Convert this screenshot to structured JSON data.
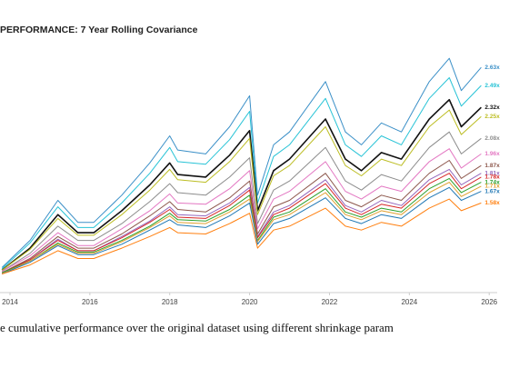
{
  "chart_data": {
    "type": "line",
    "title": "PERFORMANCE: 7 Year Rolling Covariance",
    "caption": "e cumulative performance over the original dataset using different shrinkage param",
    "x": [
      2013.8,
      2014.5,
      2015.2,
      2015.7,
      2016.1,
      2016.8,
      2017.5,
      2018.0,
      2018.2,
      2018.9,
      2019.5,
      2020.0,
      2020.2,
      2020.6,
      2021.0,
      2021.9,
      2022.4,
      2022.8,
      2023.3,
      2023.8,
      2024.5,
      2025.0,
      2025.3,
      2025.8
    ],
    "xlim": [
      2013.75,
      2026.2
    ],
    "xticks": [
      2014,
      2016,
      2018,
      2020,
      2022,
      2024,
      2026
    ],
    "ylim": [
      0.9,
      2.8
    ],
    "series": [
      {
        "color": "#3a8fc7",
        "values": [
          1.08,
          1.29,
          1.6,
          1.43,
          1.43,
          1.64,
          1.89,
          2.1,
          1.99,
          1.96,
          2.17,
          2.41,
          1.64,
          2.03,
          2.13,
          2.52,
          2.13,
          2.03,
          2.2,
          2.13,
          2.52,
          2.7,
          2.45,
          2.63
        ],
        "value_labels": [
          null,
          null,
          null,
          null,
          null,
          null,
          null,
          null,
          null,
          null,
          null,
          null,
          null,
          null,
          null,
          null,
          null,
          null,
          null,
          null,
          null,
          null,
          null,
          "2.63x"
        ]
      },
      {
        "color": "#27c3d6",
        "values": [
          1.07,
          1.27,
          1.55,
          1.39,
          1.39,
          1.58,
          1.81,
          2.01,
          1.9,
          1.88,
          2.07,
          2.29,
          1.58,
          1.94,
          2.03,
          2.39,
          2.03,
          1.94,
          2.1,
          2.03,
          2.39,
          2.55,
          2.33,
          2.49
        ],
        "value_labels": [
          null,
          null,
          null,
          null,
          null,
          null,
          null,
          null,
          null,
          null,
          null,
          null,
          null,
          null,
          null,
          null,
          null,
          null,
          null,
          null,
          null,
          null,
          null,
          "2.49x"
        ]
      },
      {
        "color": "#111111",
        "values": [
          1.06,
          1.23,
          1.49,
          1.35,
          1.35,
          1.52,
          1.72,
          1.89,
          1.8,
          1.78,
          1.95,
          2.14,
          1.52,
          1.83,
          1.92,
          2.23,
          1.92,
          1.83,
          1.97,
          1.92,
          2.23,
          2.38,
          2.17,
          2.32
        ],
        "value_labels": [
          null,
          null,
          null,
          null,
          null,
          null,
          null,
          null,
          null,
          null,
          null,
          null,
          null,
          null,
          null,
          null,
          null,
          null,
          null,
          null,
          null,
          null,
          null,
          "2.32x"
        ]
      },
      {
        "color": "#bcbd22",
        "values": [
          1.06,
          1.22,
          1.46,
          1.33,
          1.33,
          1.49,
          1.68,
          1.84,
          1.76,
          1.74,
          1.9,
          2.08,
          1.49,
          1.79,
          1.87,
          2.17,
          1.87,
          1.79,
          1.92,
          1.87,
          2.17,
          2.3,
          2.11,
          2.25
        ],
        "value_labels": [
          null,
          null,
          null,
          null,
          null,
          null,
          null,
          null,
          null,
          null,
          null,
          null,
          null,
          null,
          null,
          null,
          null,
          null,
          null,
          null,
          null,
          null,
          null,
          "2.25x"
        ]
      },
      {
        "color": "#8c8c8c",
        "values": [
          1.05,
          1.19,
          1.4,
          1.29,
          1.29,
          1.42,
          1.59,
          1.73,
          1.66,
          1.64,
          1.78,
          1.93,
          1.42,
          1.68,
          1.75,
          2.01,
          1.75,
          1.68,
          1.8,
          1.75,
          2.01,
          2.13,
          1.96,
          2.08
        ],
        "value_labels": [
          null,
          null,
          null,
          null,
          null,
          null,
          null,
          null,
          null,
          null,
          null,
          null,
          null,
          null,
          null,
          null,
          null,
          null,
          null,
          null,
          null,
          null,
          null,
          "2.08x"
        ]
      },
      {
        "color": "#e377c2",
        "values": [
          1.05,
          1.17,
          1.35,
          1.25,
          1.25,
          1.38,
          1.52,
          1.65,
          1.58,
          1.57,
          1.69,
          1.83,
          1.38,
          1.61,
          1.67,
          1.9,
          1.67,
          1.61,
          1.71,
          1.67,
          1.9,
          2.0,
          1.85,
          1.96
        ],
        "value_labels": [
          null,
          null,
          null,
          null,
          null,
          null,
          null,
          null,
          null,
          null,
          null,
          null,
          null,
          null,
          null,
          null,
          null,
          null,
          null,
          null,
          null,
          null,
          null,
          "1.96x"
        ]
      },
      {
        "color": "#8c564b",
        "values": [
          1.04,
          1.15,
          1.32,
          1.23,
          1.23,
          1.34,
          1.48,
          1.59,
          1.53,
          1.51,
          1.62,
          1.75,
          1.34,
          1.55,
          1.6,
          1.81,
          1.6,
          1.55,
          1.64,
          1.6,
          1.81,
          1.91,
          1.77,
          1.87
        ],
        "value_labels": [
          null,
          null,
          null,
          null,
          null,
          null,
          null,
          null,
          null,
          null,
          null,
          null,
          null,
          null,
          null,
          null,
          null,
          null,
          null,
          null,
          null,
          null,
          null,
          "1.87x"
        ]
      },
      {
        "color": "#9467bd",
        "values": [
          1.04,
          1.14,
          1.3,
          1.21,
          1.21,
          1.32,
          1.44,
          1.55,
          1.49,
          1.48,
          1.58,
          1.7,
          1.32,
          1.51,
          1.56,
          1.76,
          1.56,
          1.51,
          1.6,
          1.56,
          1.76,
          1.84,
          1.72,
          1.81
        ],
        "value_labels": [
          null,
          null,
          null,
          null,
          null,
          null,
          null,
          null,
          null,
          null,
          null,
          null,
          null,
          null,
          null,
          null,
          null,
          null,
          null,
          null,
          null,
          null,
          null,
          "1.81x"
        ]
      },
      {
        "color": "#d62728",
        "values": [
          1.04,
          1.14,
          1.29,
          1.21,
          1.21,
          1.31,
          1.43,
          1.53,
          1.47,
          1.46,
          1.56,
          1.68,
          1.31,
          1.49,
          1.54,
          1.73,
          1.54,
          1.49,
          1.57,
          1.54,
          1.73,
          1.81,
          1.69,
          1.78
        ],
        "value_labels": [
          null,
          null,
          null,
          null,
          null,
          null,
          null,
          null,
          null,
          null,
          null,
          null,
          null,
          null,
          null,
          null,
          null,
          null,
          null,
          null,
          null,
          null,
          null,
          "1.78x"
        ]
      },
      {
        "color": "#2ca02c",
        "values": [
          1.04,
          1.13,
          1.27,
          1.2,
          1.2,
          1.29,
          1.4,
          1.5,
          1.45,
          1.44,
          1.53,
          1.64,
          1.29,
          1.47,
          1.51,
          1.69,
          1.51,
          1.47,
          1.54,
          1.51,
          1.69,
          1.77,
          1.66,
          1.74
        ],
        "value_labels": [
          null,
          null,
          null,
          null,
          null,
          null,
          null,
          null,
          null,
          null,
          null,
          null,
          null,
          null,
          null,
          null,
          null,
          null,
          null,
          null,
          null,
          null,
          null,
          "1.74x"
        ]
      },
      {
        "color": "#e0a030",
        "values": [
          1.03,
          1.13,
          1.26,
          1.19,
          1.19,
          1.28,
          1.39,
          1.48,
          1.43,
          1.42,
          1.51,
          1.61,
          1.28,
          1.45,
          1.49,
          1.66,
          1.49,
          1.45,
          1.52,
          1.49,
          1.66,
          1.74,
          1.63,
          1.71
        ],
        "value_labels": [
          null,
          null,
          null,
          null,
          null,
          null,
          null,
          null,
          null,
          null,
          null,
          null,
          null,
          null,
          null,
          null,
          null,
          null,
          null,
          null,
          null,
          null,
          null,
          "1.71x"
        ]
      },
      {
        "color": "#1f77b4",
        "values": [
          1.03,
          1.12,
          1.25,
          1.18,
          1.18,
          1.26,
          1.37,
          1.45,
          1.41,
          1.39,
          1.48,
          1.58,
          1.26,
          1.42,
          1.46,
          1.62,
          1.46,
          1.42,
          1.49,
          1.46,
          1.62,
          1.7,
          1.6,
          1.67
        ],
        "value_labels": [
          null,
          null,
          null,
          null,
          null,
          null,
          null,
          null,
          null,
          null,
          null,
          null,
          null,
          null,
          null,
          null,
          null,
          null,
          null,
          null,
          null,
          null,
          null,
          "1.67x"
        ]
      },
      {
        "color": "#ff7f0e",
        "values": [
          1.03,
          1.1,
          1.21,
          1.15,
          1.15,
          1.23,
          1.32,
          1.39,
          1.35,
          1.34,
          1.42,
          1.5,
          1.23,
          1.37,
          1.4,
          1.54,
          1.4,
          1.37,
          1.43,
          1.4,
          1.54,
          1.61,
          1.52,
          1.58
        ],
        "value_labels": [
          null,
          null,
          null,
          null,
          null,
          null,
          null,
          null,
          null,
          null,
          null,
          null,
          null,
          null,
          null,
          null,
          null,
          null,
          null,
          null,
          null,
          null,
          null,
          "1.58x"
        ]
      }
    ]
  }
}
